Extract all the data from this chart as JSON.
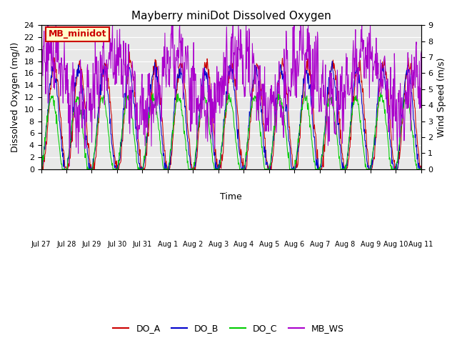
{
  "title": "Mayberry miniDot Dissolved Oxygen",
  "xlabel": "Time",
  "ylabel_left": "Dissolved Oxygen (mg/l)",
  "ylabel_right": "Wind Speed (m/s)",
  "ylim_left": [
    0,
    24
  ],
  "ylim_right": [
    0.0,
    9.0
  ],
  "yticks_left": [
    0,
    2,
    4,
    6,
    8,
    10,
    12,
    14,
    16,
    18,
    20,
    22,
    24
  ],
  "yticks_right": [
    0.0,
    1.0,
    2.0,
    3.0,
    4.0,
    5.0,
    6.0,
    7.0,
    8.0,
    9.0
  ],
  "xtick_labels": [
    "Jul 27",
    "Jul 28",
    "Jul 29",
    "Jul 30",
    "Jul 31",
    "Aug 1",
    "Aug 2",
    "Aug 3",
    "Aug 4",
    "Aug 5",
    "Aug 6",
    "Aug 7",
    "Aug 8",
    "Aug 9",
    "Aug 10",
    "Aug 11"
  ],
  "color_DO_A": "#cc0000",
  "color_DO_B": "#0000cc",
  "color_DO_C": "#00cc00",
  "color_MB_WS": "#aa00cc",
  "color_legend_bg": "#ffffcc",
  "color_legend_edge": "#cc0000",
  "legend_box_label": "MB_minidot",
  "bg_color": "#e8e8e8",
  "grid_color": "#ffffff",
  "n_points": 960
}
